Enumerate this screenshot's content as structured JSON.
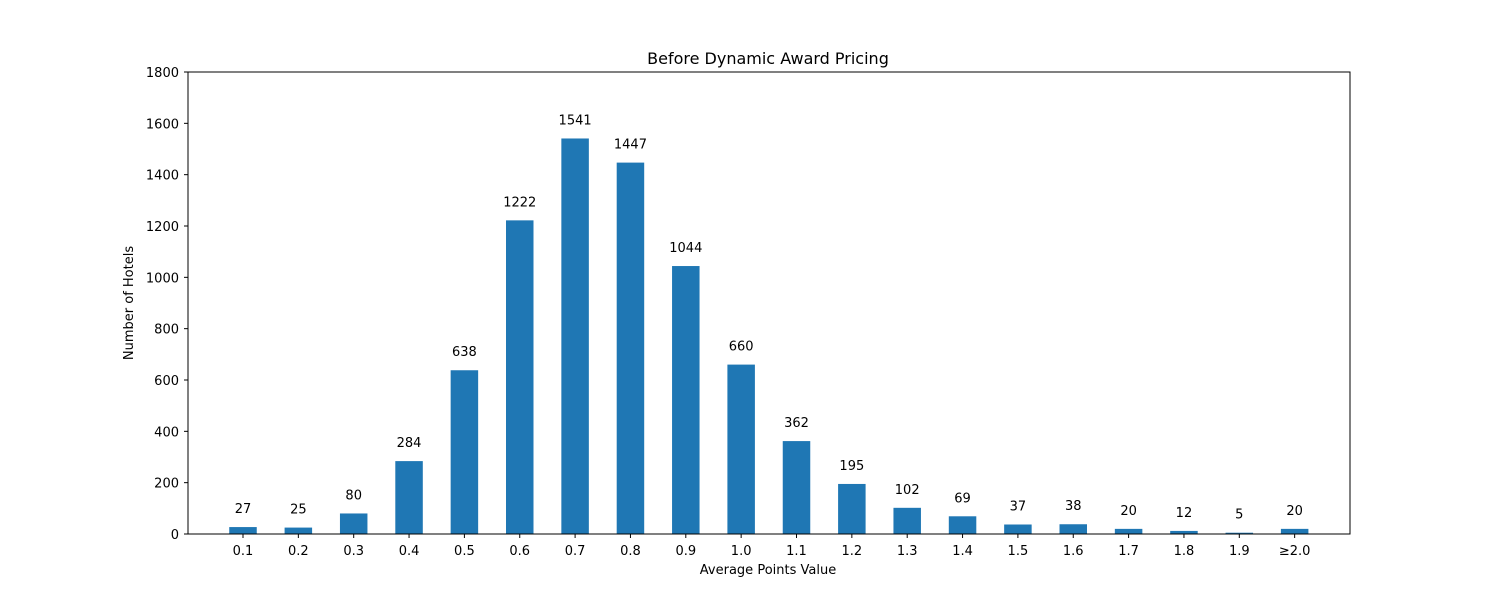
{
  "chart_data": {
    "type": "bar",
    "title": "Before Dynamic Award Pricing",
    "xlabel": "Average Points Value",
    "ylabel": "Number of Hotels",
    "categories": [
      "0.1",
      "0.2",
      "0.3",
      "0.4",
      "0.5",
      "0.6",
      "0.7",
      "0.8",
      "0.9",
      "1.0",
      "1.1",
      "1.2",
      "1.3",
      "1.4",
      "1.5",
      "1.6",
      "1.7",
      "1.8",
      "1.9",
      "≥2.0"
    ],
    "values": [
      27,
      25,
      80,
      284,
      638,
      1222,
      1541,
      1447,
      1044,
      660,
      362,
      195,
      102,
      69,
      37,
      38,
      20,
      12,
      5,
      20
    ],
    "ylim": [
      0,
      1800
    ],
    "yticks": [
      0,
      200,
      400,
      600,
      800,
      1000,
      1200,
      1400,
      1600,
      1800
    ],
    "bar_color": "#1f77b4",
    "grid": false,
    "legend": "none"
  }
}
